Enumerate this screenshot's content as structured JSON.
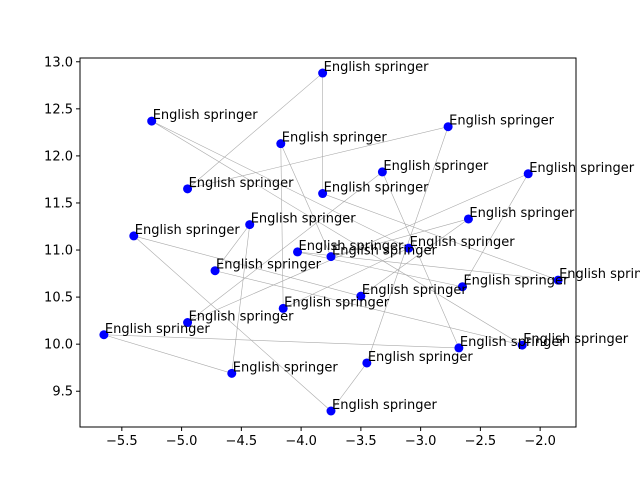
{
  "chart_data": {
    "type": "scatter",
    "title": "",
    "xlabel": "",
    "ylabel": "",
    "xlim": [
      -5.85,
      -1.7
    ],
    "ylim": [
      9.12,
      13.04
    ],
    "grid": false,
    "legend": "none",
    "x_ticks": [
      "−5.5",
      "−5.0",
      "−4.5",
      "−4.0",
      "−3.5",
      "−3.0",
      "−2.5",
      "−2.0"
    ],
    "y_ticks": [
      "9.5",
      "10.0",
      "10.5",
      "11.0",
      "11.5",
      "12.0",
      "12.5",
      "13.0"
    ],
    "x_tick_values": [
      -5.5,
      -5.0,
      -4.5,
      -4.0,
      -3.5,
      -3.0,
      -2.5,
      -2.0
    ],
    "y_tick_values": [
      9.5,
      10.0,
      10.5,
      11.0,
      11.5,
      12.0,
      12.5,
      13.0
    ],
    "point_color": "#0000ff",
    "line_color": "#aaaaaa",
    "points": [
      {
        "x": -3.82,
        "y": 12.88,
        "label": "English springer"
      },
      {
        "x": -5.25,
        "y": 12.37,
        "label": "English springer"
      },
      {
        "x": -4.17,
        "y": 12.13,
        "label": "English springer"
      },
      {
        "x": -2.77,
        "y": 12.31,
        "label": "English springer"
      },
      {
        "x": -3.32,
        "y": 11.83,
        "label": "English springer"
      },
      {
        "x": -2.1,
        "y": 11.81,
        "label": "English springer"
      },
      {
        "x": -4.95,
        "y": 11.65,
        "label": "English springer"
      },
      {
        "x": -3.82,
        "y": 11.6,
        "label": "English springer"
      },
      {
        "x": -2.6,
        "y": 11.33,
        "label": "English springer"
      },
      {
        "x": -4.43,
        "y": 11.27,
        "label": "English springer"
      },
      {
        "x": -5.4,
        "y": 11.15,
        "label": "English springer"
      },
      {
        "x": -3.1,
        "y": 11.02,
        "label": "English springer"
      },
      {
        "x": -4.03,
        "y": 10.98,
        "label": "English springer"
      },
      {
        "x": -3.75,
        "y": 10.93,
        "label": "English springer"
      },
      {
        "x": -4.72,
        "y": 10.78,
        "label": "English springer"
      },
      {
        "x": -1.85,
        "y": 10.68,
        "label": "English springer"
      },
      {
        "x": -2.65,
        "y": 10.61,
        "label": "English springer"
      },
      {
        "x": -3.5,
        "y": 10.51,
        "label": "English springer"
      },
      {
        "x": -4.15,
        "y": 10.38,
        "label": "English springer"
      },
      {
        "x": -4.95,
        "y": 10.23,
        "label": "English springer"
      },
      {
        "x": -5.65,
        "y": 10.1,
        "label": "English springer"
      },
      {
        "x": -2.68,
        "y": 9.96,
        "label": "English springer"
      },
      {
        "x": -2.15,
        "y": 9.99,
        "label": "English springer"
      },
      {
        "x": -3.45,
        "y": 9.8,
        "label": "English springer"
      },
      {
        "x": -4.58,
        "y": 9.69,
        "label": "English springer"
      },
      {
        "x": -3.75,
        "y": 9.29,
        "label": "English springer"
      }
    ],
    "connections": [
      [
        0,
        7
      ],
      [
        0,
        6
      ],
      [
        6,
        3
      ],
      [
        3,
        23
      ],
      [
        23,
        25
      ],
      [
        25,
        10
      ],
      [
        10,
        17
      ],
      [
        17,
        8
      ],
      [
        8,
        13
      ],
      [
        13,
        2
      ],
      [
        2,
        18
      ],
      [
        18,
        11
      ],
      [
        11,
        1
      ],
      [
        1,
        22
      ],
      [
        22,
        14
      ],
      [
        14,
        9
      ],
      [
        9,
        24
      ],
      [
        24,
        20
      ],
      [
        20,
        21
      ],
      [
        21,
        4
      ],
      [
        4,
        19
      ],
      [
        19,
        5
      ],
      [
        5,
        16
      ],
      [
        16,
        12
      ],
      [
        12,
        15
      ],
      [
        15,
        7
      ]
    ]
  }
}
